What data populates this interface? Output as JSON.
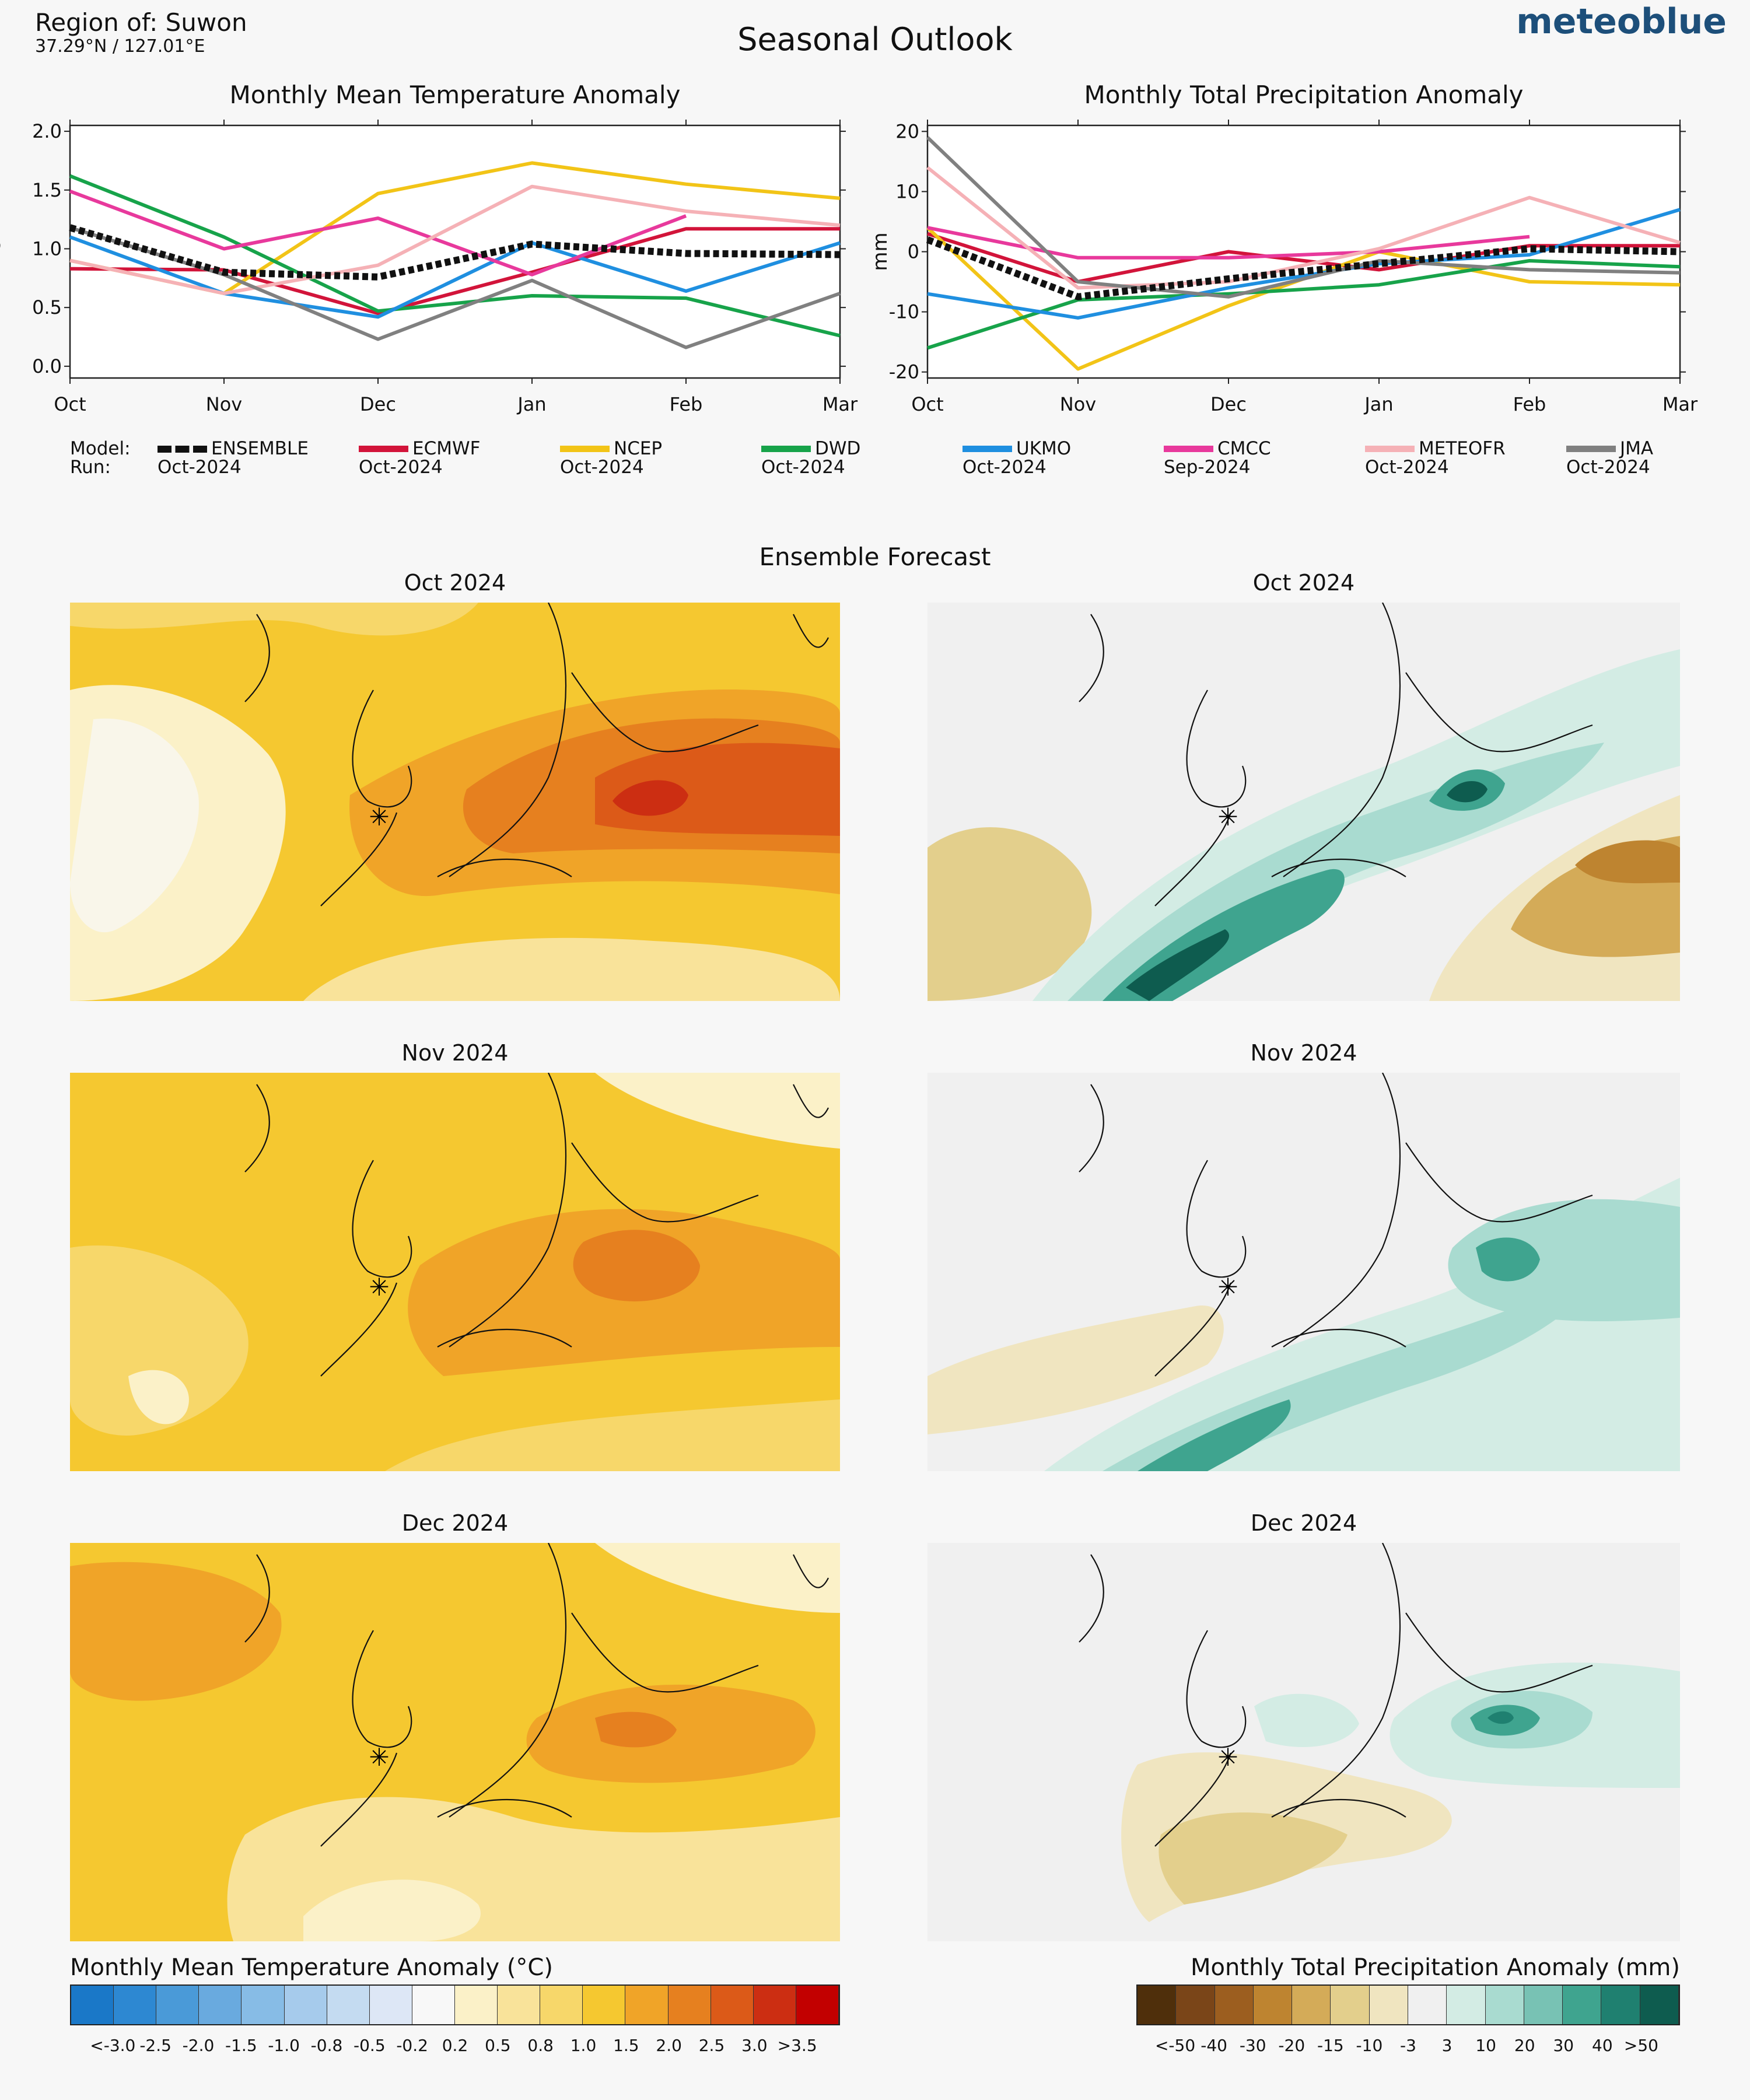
{
  "header": {
    "region": "Region of: Suwon",
    "coords": "37.29°N / 127.01°E",
    "title": "Seasonal Outlook",
    "brand": "meteoblue"
  },
  "legend": {
    "model_label": "Model:",
    "run_label": "Run:",
    "models": [
      {
        "name": "ENSEMBLE",
        "run": "Oct-2024",
        "color": "#111111",
        "dashed": true
      },
      {
        "name": "ECMWF",
        "run": "Oct-2024",
        "color": "#d2143a"
      },
      {
        "name": "NCEP",
        "run": "Oct-2024",
        "color": "#f2c417"
      },
      {
        "name": "DWD",
        "run": "Oct-2024",
        "color": "#17a34a"
      },
      {
        "name": "UKMO",
        "run": "Oct-2024",
        "color": "#1f8fe0"
      },
      {
        "name": "CMCC",
        "run": "Sep-2024",
        "color": "#e8399c"
      },
      {
        "name": "METEOFR",
        "run": "Oct-2024",
        "color": "#f5b1b6"
      },
      {
        "name": "JMA",
        "run": "Oct-2024",
        "color": "#808080"
      }
    ]
  },
  "chart_data": [
    {
      "type": "line",
      "title": "Monthly Mean Temperature Anomaly",
      "ylabel": "°C",
      "categories": [
        "Oct",
        "Nov",
        "Dec",
        "Jan",
        "Feb",
        "Mar"
      ],
      "ylim": [
        -0.1,
        2.05
      ],
      "yticks": [
        "2.0",
        "1.5",
        "1.0",
        "0.5",
        "0.0"
      ],
      "ytick_values": [
        2.0,
        1.5,
        1.0,
        0.5,
        0.0
      ],
      "series": [
        {
          "name": "ECMWF",
          "values": [
            0.83,
            0.82,
            0.45,
            0.8,
            1.17,
            1.17
          ]
        },
        {
          "name": "NCEP",
          "values": [
            0.9,
            0.62,
            1.47,
            1.73,
            1.55,
            1.43
          ]
        },
        {
          "name": "DWD",
          "values": [
            1.62,
            1.1,
            0.47,
            0.6,
            0.58,
            0.26
          ]
        },
        {
          "name": "UKMO",
          "values": [
            1.1,
            0.62,
            0.42,
            1.05,
            0.64,
            1.05
          ]
        },
        {
          "name": "CMCC",
          "values": [
            1.49,
            1.0,
            1.26,
            0.78,
            1.28,
            null
          ]
        },
        {
          "name": "METEOFR",
          "values": [
            0.9,
            0.62,
            0.86,
            1.53,
            1.32,
            1.2
          ]
        },
        {
          "name": "JMA",
          "values": [
            1.18,
            0.78,
            0.23,
            0.73,
            0.16,
            0.62
          ]
        },
        {
          "name": "ENSEMBLE",
          "values": [
            1.18,
            0.8,
            0.76,
            1.04,
            0.96,
            0.95
          ]
        }
      ]
    },
    {
      "type": "line",
      "title": "Monthly Total Precipitation Anomaly",
      "ylabel": "mm",
      "categories": [
        "Oct",
        "Nov",
        "Dec",
        "Jan",
        "Feb",
        "Mar"
      ],
      "ylim": [
        -21,
        21
      ],
      "yticks": [
        "20",
        "10",
        "0",
        "-10",
        "-20"
      ],
      "ytick_values": [
        20,
        10,
        0,
        -10,
        -20
      ],
      "series": [
        {
          "name": "ECMWF",
          "values": [
            3,
            -5,
            0,
            -3,
            1,
            1
          ]
        },
        {
          "name": "NCEP",
          "values": [
            4,
            -19.5,
            -9,
            0,
            -5,
            -5.5
          ]
        },
        {
          "name": "DWD",
          "values": [
            -16,
            -8,
            -7,
            -5.5,
            -1.5,
            -2.5
          ]
        },
        {
          "name": "UKMO",
          "values": [
            -7,
            -11,
            -6,
            -2,
            -0.5,
            7
          ]
        },
        {
          "name": "CMCC",
          "values": [
            4,
            -1,
            -1,
            0,
            2.5,
            null
          ]
        },
        {
          "name": "METEOFR",
          "values": [
            14,
            -6,
            -5,
            0.5,
            9,
            1.5
          ]
        },
        {
          "name": "JMA",
          "values": [
            19,
            -5,
            -7.5,
            -1.5,
            -3,
            -3.5
          ]
        },
        {
          "name": "ENSEMBLE",
          "values": [
            2,
            -7.5,
            -4.5,
            -2,
            0.5,
            0
          ]
        }
      ]
    }
  ],
  "ensemble": {
    "title": "Ensemble Forecast",
    "months": [
      "Oct 2024",
      "Nov 2024",
      "Dec 2024"
    ]
  },
  "colorbars": {
    "temperature": {
      "title": "Monthly Mean Temperature Anomaly (°C)",
      "labels": [
        "<-3.0",
        "-2.5",
        "-2.0",
        "-1.5",
        "-1.0",
        "-0.8",
        "-0.5",
        "-0.2",
        "0.2",
        "0.5",
        "0.8",
        "1.0",
        "1.5",
        "2.0",
        "2.5",
        "3.0",
        ">3.5"
      ],
      "colors": [
        "#1a78c8",
        "#2d88d2",
        "#4a9ad8",
        "#69aadf",
        "#87bce6",
        "#a6cbec",
        "#c4dbf1",
        "#dde7f6",
        "#f8f8f8",
        "#fbf1c8",
        "#f9e39a",
        "#f7d76a",
        "#f5c830",
        "#f0a428",
        "#e6801f",
        "#dc5a18",
        "#cc2e12",
        "#c20000"
      ]
    },
    "precipitation": {
      "title": "Monthly Total Precipitation Anomaly (mm)",
      "labels": [
        "<-50",
        "-40",
        "-30",
        "-20",
        "-15",
        "-10",
        "-3",
        "3",
        "10",
        "20",
        "30",
        "40",
        ">50"
      ],
      "colors": [
        "#4f2f0b",
        "#7a4518",
        "#9c5e1f",
        "#be8430",
        "#d4ab58",
        "#e3cf8c",
        "#f0e5c0",
        "#f0f0f0",
        "#d3ece4",
        "#a9dbd0",
        "#78c2b4",
        "#3fa48f",
        "#1f8070",
        "#0e5c4f"
      ]
    }
  }
}
